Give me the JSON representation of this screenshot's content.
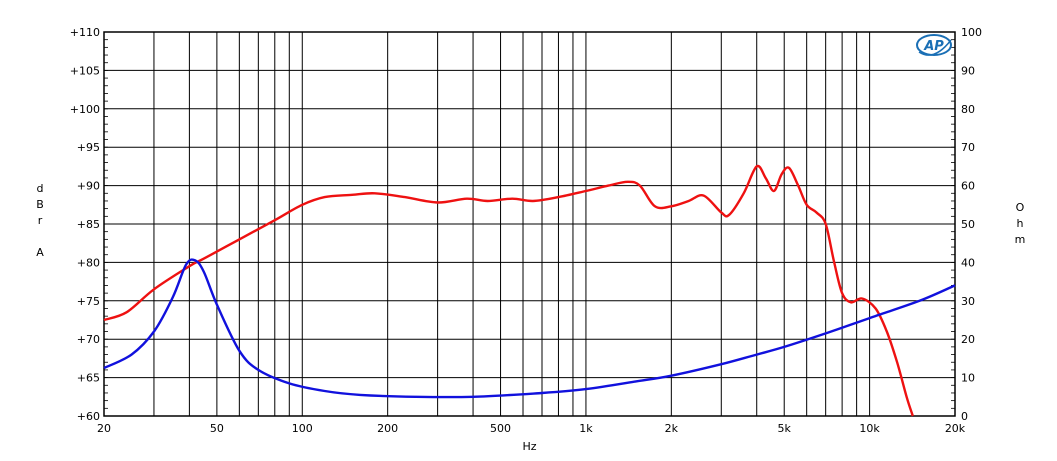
{
  "chart_data": {
    "type": "line",
    "title": "",
    "xlabel": "Hz",
    "ylabel_left": [
      "d",
      "B",
      "r",
      "",
      "A"
    ],
    "ylabel_right": [
      "O",
      "h",
      "m"
    ],
    "x_scale": "log",
    "xlim": [
      20,
      20000
    ],
    "ylim_left": [
      60,
      110
    ],
    "ylim_right": [
      0,
      100
    ],
    "grid": true,
    "x_ticks": [
      {
        "value": 20,
        "label": "20"
      },
      {
        "value": 50,
        "label": "50"
      },
      {
        "value": 100,
        "label": "100"
      },
      {
        "value": 200,
        "label": "200"
      },
      {
        "value": 500,
        "label": "500"
      },
      {
        "value": 1000,
        "label": "1k"
      },
      {
        "value": 2000,
        "label": "2k"
      },
      {
        "value": 5000,
        "label": "5k"
      },
      {
        "value": 10000,
        "label": "10k"
      },
      {
        "value": 20000,
        "label": "20k"
      }
    ],
    "y_ticks_left": [
      {
        "value": 110,
        "label": "+110"
      },
      {
        "value": 105,
        "label": "+105"
      },
      {
        "value": 100,
        "label": "+100"
      },
      {
        "value": 95,
        "label": "+95"
      },
      {
        "value": 90,
        "label": "+90"
      },
      {
        "value": 85,
        "label": "+85"
      },
      {
        "value": 80,
        "label": "+80"
      },
      {
        "value": 75,
        "label": "+75"
      },
      {
        "value": 70,
        "label": "+70"
      },
      {
        "value": 65,
        "label": "+65"
      },
      {
        "value": 60,
        "label": "+60"
      }
    ],
    "y_ticks_right": [
      {
        "value": 100,
        "label": "100"
      },
      {
        "value": 90,
        "label": "90"
      },
      {
        "value": 80,
        "label": "80"
      },
      {
        "value": 70,
        "label": "70"
      },
      {
        "value": 60,
        "label": "60"
      },
      {
        "value": 50,
        "label": "50"
      },
      {
        "value": 40,
        "label": "40"
      },
      {
        "value": 30,
        "label": "30"
      },
      {
        "value": 20,
        "label": "20"
      },
      {
        "value": 10,
        "label": "10"
      },
      {
        "value": 0,
        "label": "0"
      }
    ],
    "series": [
      {
        "axis": "left",
        "color": "#ee1111",
        "points": [
          [
            20,
            72.5
          ],
          [
            24,
            73.5
          ],
          [
            30,
            76.5
          ],
          [
            40,
            79.5
          ],
          [
            45,
            80.5
          ],
          [
            60,
            83.0
          ],
          [
            80,
            85.5
          ],
          [
            100,
            87.5
          ],
          [
            120,
            88.5
          ],
          [
            150,
            88.8
          ],
          [
            180,
            89.0
          ],
          [
            230,
            88.5
          ],
          [
            300,
            87.8
          ],
          [
            380,
            88.3
          ],
          [
            450,
            88.0
          ],
          [
            550,
            88.3
          ],
          [
            650,
            88.0
          ],
          [
            800,
            88.5
          ],
          [
            1000,
            89.3
          ],
          [
            1200,
            90.0
          ],
          [
            1400,
            90.5
          ],
          [
            1550,
            90.0
          ],
          [
            1750,
            87.3
          ],
          [
            2000,
            87.3
          ],
          [
            2300,
            88.0
          ],
          [
            2600,
            88.7
          ],
          [
            3000,
            86.5
          ],
          [
            3200,
            86.2
          ],
          [
            3600,
            89.0
          ],
          [
            4000,
            92.5
          ],
          [
            4300,
            91.0
          ],
          [
            4600,
            89.3
          ],
          [
            4900,
            91.5
          ],
          [
            5200,
            92.3
          ],
          [
            5600,
            90.0
          ],
          [
            6000,
            87.5
          ],
          [
            6500,
            86.5
          ],
          [
            7000,
            85.0
          ],
          [
            7500,
            80.0
          ],
          [
            8000,
            76.0
          ],
          [
            8600,
            74.8
          ],
          [
            9400,
            75.3
          ],
          [
            10500,
            74.0
          ],
          [
            11500,
            71.0
          ],
          [
            12500,
            67.0
          ],
          [
            13500,
            62.5
          ],
          [
            14200,
            60.0
          ]
        ]
      },
      {
        "axis": "right",
        "color": "#1111dd",
        "points": [
          [
            20,
            12.5
          ],
          [
            25,
            16.0
          ],
          [
            30,
            22.0
          ],
          [
            35,
            31.0
          ],
          [
            39,
            39.5
          ],
          [
            42,
            40.5
          ],
          [
            45,
            37.5
          ],
          [
            50,
            29.0
          ],
          [
            60,
            17.0
          ],
          [
            70,
            12.0
          ],
          [
            90,
            8.5
          ],
          [
            120,
            6.5
          ],
          [
            160,
            5.5
          ],
          [
            250,
            5.0
          ],
          [
            400,
            5.0
          ],
          [
            700,
            6.0
          ],
          [
            1000,
            7.0
          ],
          [
            1500,
            9.0
          ],
          [
            2000,
            10.5
          ],
          [
            3000,
            13.5
          ],
          [
            4000,
            16.0
          ],
          [
            5000,
            18.0
          ],
          [
            7000,
            21.5
          ],
          [
            10000,
            25.5
          ],
          [
            15000,
            30.0
          ],
          [
            20000,
            34.0
          ]
        ]
      }
    ],
    "logo_text": "AP"
  }
}
